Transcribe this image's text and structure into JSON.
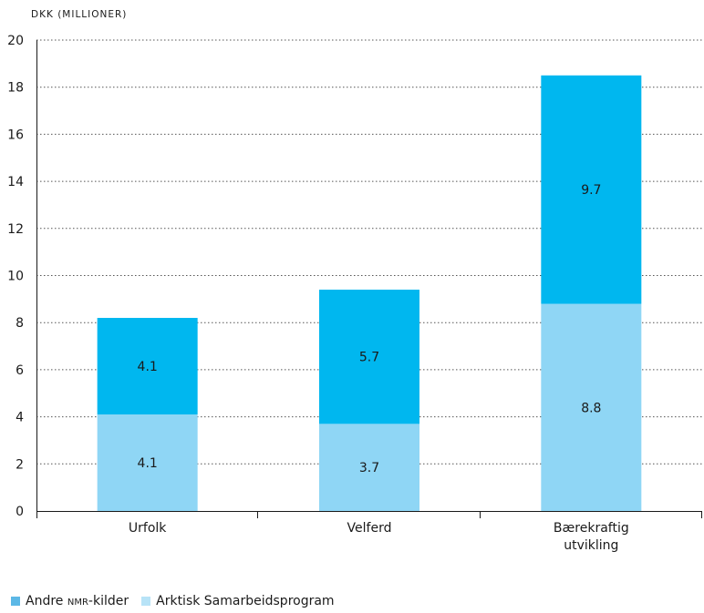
{
  "chart_data": {
    "type": "bar",
    "stacked": true,
    "ylabel": "DKK (MILLIONER)",
    "ylim": [
      0,
      20
    ],
    "yticks": [
      0,
      2,
      4,
      6,
      8,
      10,
      12,
      14,
      16,
      18,
      20
    ],
    "grid": "horizontal dotted",
    "categories": [
      [
        "Urfolk"
      ],
      [
        "Velferd"
      ],
      [
        "Bærekraftig",
        "utvikling"
      ]
    ],
    "series": [
      {
        "name": "Arktisk Samarbeidsprogram",
        "values": [
          4.1,
          3.7,
          8.8
        ],
        "labels": [
          "4.1",
          "3.7",
          "8.8"
        ],
        "color": "#8fd6f5"
      },
      {
        "name": "Andre NMR-kilder",
        "values": [
          4.1,
          5.7,
          9.7
        ],
        "labels": [
          "4.1",
          "5.7",
          "9.7"
        ],
        "color": "#00b7ef"
      }
    ],
    "legend_position": "bottom-left"
  },
  "legend": {
    "items": [
      {
        "prefix": "Andre ",
        "smallcaps": "nmr",
        "suffix": "-kilder",
        "color": "#5cb8e6"
      },
      {
        "prefix": "Arktisk Samarbeidsprogram",
        "smallcaps": "",
        "suffix": "",
        "color": "#b7e3f7"
      }
    ]
  }
}
